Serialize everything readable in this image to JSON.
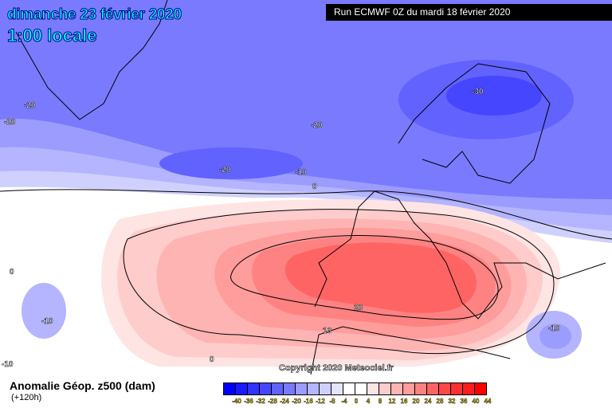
{
  "header": {
    "date": "dimanche 23 février 2020",
    "time": "1:00 locale",
    "run": "Run ECMWF 0Z du mardi 18 février 2020"
  },
  "map": {
    "copyright": "Copyright 2020 Meteociel.fr",
    "contour_labels": [
      "-20",
      "-20",
      "-20",
      "-20",
      "-30",
      "-10",
      "0",
      "0",
      "-10",
      "-10",
      "0",
      "20",
      "10",
      "-10"
    ]
  },
  "legend": {
    "title": "Anomalie Géop. z500 (dam)",
    "subtitle": "(+120h)",
    "levels": [
      "-40",
      "-36",
      "-32",
      "-28",
      "-24",
      "-20",
      "-16",
      "-12",
      "-8",
      "-4",
      "0",
      "4",
      "8",
      "12",
      "16",
      "20",
      "24",
      "28",
      "32",
      "36",
      "40",
      "44"
    ],
    "colors": [
      "#0000ff",
      "#1a1aff",
      "#3232ff",
      "#4646ff",
      "#6262ff",
      "#7a7aff",
      "#9c9cff",
      "#b4b4ff",
      "#d0d0ff",
      "#e4e4ff",
      "#ffffff",
      "#ffffff",
      "#ffe4e4",
      "#ffcccc",
      "#ffb4b4",
      "#ff9c9c",
      "#ff8282",
      "#ff6464",
      "#ff4848",
      "#ff3030",
      "#ff1c1c",
      "#ff0000"
    ]
  }
}
